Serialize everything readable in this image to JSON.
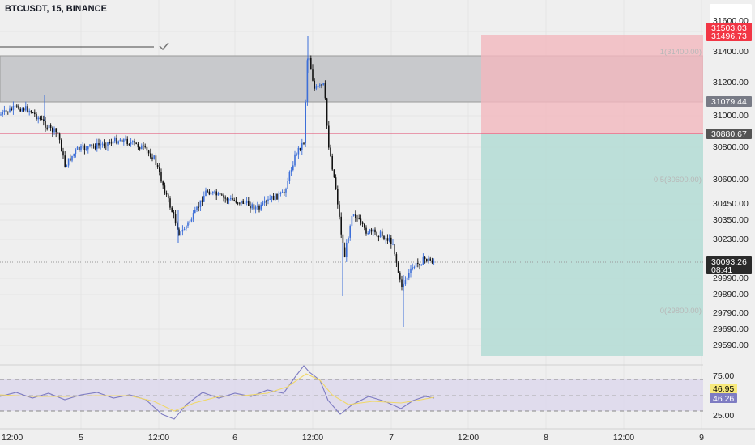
{
  "header": {
    "symbol_title": "BTCUSDT, 15, BINANCE"
  },
  "price_axis": {
    "ticks": [
      "31600.00",
      "31400.00",
      "31200.00",
      "31000.00",
      "30800.00",
      "30600.00",
      "30450.00",
      "30350.00",
      "30230.00",
      "30093.26",
      "29990.00",
      "29890.00",
      "29790.00",
      "29690.00",
      "29590.00"
    ]
  },
  "price_tags": {
    "target_a": {
      "text": "31503.03",
      "bg": "#f23645",
      "fg": "#ffffff"
    },
    "target_b": {
      "text": "31496.73",
      "bg": "#f23645",
      "fg": "#ffffff"
    },
    "zone_top": {
      "text": "31079.44",
      "bg": "#787b86",
      "fg": "#ffffff"
    },
    "entry": {
      "text": "30880.67",
      "bg": "#555555",
      "fg": "#ffffff"
    },
    "last": {
      "price": "30093.26",
      "countdown": "08:41",
      "bg": "#2a2a2a",
      "fg": "#ffffff"
    }
  },
  "faint_labels": {
    "top": "1(31400.00)",
    "mid": "0.5(30600.00)",
    "bottom": "0(29800.00)"
  },
  "rsi_axis": {
    "ticks": [
      "75.00",
      "25.00"
    ],
    "rsi_value": {
      "text": "46.95",
      "bg": "#f7e97b",
      "fg": "#000000"
    },
    "ma_value": {
      "text": "46.26",
      "bg": "#7e7cc2",
      "fg": "#ffffff"
    }
  },
  "time_axis": {
    "labels": [
      "12:00",
      "5",
      "12:00",
      "6",
      "12:00",
      "7",
      "12:00",
      "8",
      "12:00",
      "9"
    ]
  },
  "colors": {
    "background": "#efefef",
    "candle_up": "#3d6fd8",
    "candle_down": "#111111",
    "stop_zone": "#f2b8be",
    "target_zone": "#b6ddd6",
    "supply_zone": "#c8c9cc",
    "entry_line": "#e0436a",
    "rsi_line": "#7e7cc2",
    "rsi_ma": "#f0d86a",
    "rsi_band": "#dcd7ec"
  }
}
